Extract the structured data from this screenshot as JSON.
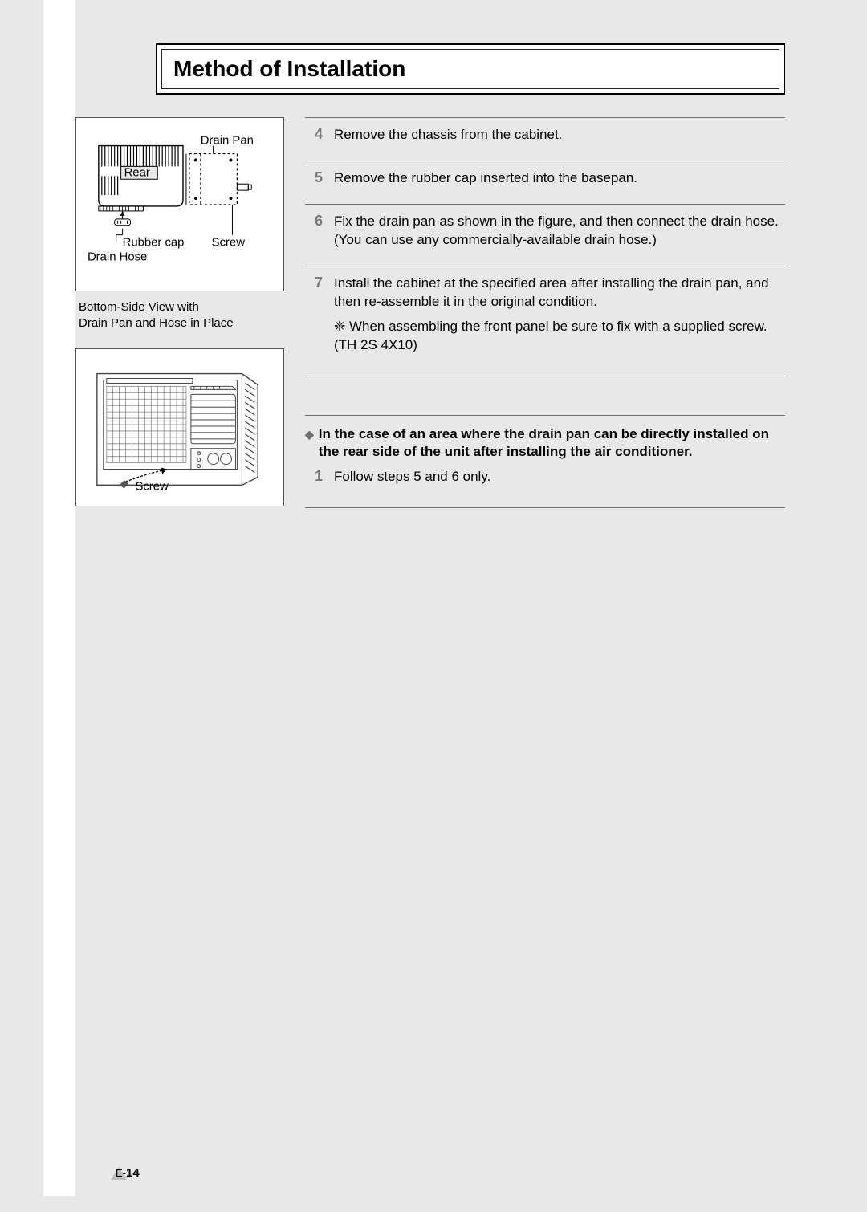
{
  "title": "Method of Installation",
  "diagram1": {
    "labels": {
      "drain_pan": "Drain Pan",
      "rear": "Rear",
      "rubber_cap": "Rubber cap",
      "screw": "Screw",
      "drain_hose": "Drain Hose"
    },
    "caption": "Bottom-Side View with\nDrain Pan and Hose in Place"
  },
  "diagram2": {
    "labels": {
      "screw": "Screw"
    }
  },
  "steps": [
    {
      "num": "4",
      "text": "Remove the chassis from the cabinet."
    },
    {
      "num": "5",
      "text": "Remove the rubber cap inserted into the basepan."
    },
    {
      "num": "6",
      "text": "Fix the drain pan as shown in the figure, and then connect the drain hose. (You can use any commercially-available drain hose.)"
    },
    {
      "num": "7",
      "text": "Install the cabinet at the specified area after installing the drain pan, and then re-assemble it in the original condition.",
      "note": "❈ When assembling the front panel be sure to fix with a supplied screw. (TH 2S 4X10)"
    }
  ],
  "sub": {
    "head": "In the case of an area where the drain pan can be directly installed on the rear side of the unit after installing the air conditioner.",
    "step_num": "1",
    "step_text": "Follow steps 5 and 6 only."
  },
  "footer": {
    "prefix": "E-",
    "page": "14"
  },
  "colors": {
    "bg": "#e8e8e8",
    "rule": "#6f6f6f",
    "stepnum": "#7a7a7a"
  }
}
